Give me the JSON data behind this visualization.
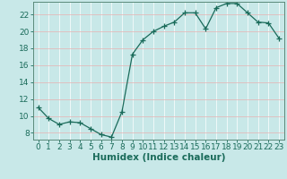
{
  "x": [
    0,
    1,
    2,
    3,
    4,
    5,
    6,
    7,
    8,
    9,
    10,
    11,
    12,
    13,
    14,
    15,
    16,
    17,
    18,
    19,
    20,
    21,
    22,
    23
  ],
  "y": [
    11,
    9.7,
    9.0,
    9.3,
    9.2,
    8.5,
    7.8,
    7.5,
    10.5,
    17.3,
    19.0,
    20.0,
    20.6,
    21.1,
    22.2,
    22.2,
    20.3,
    22.8,
    23.3,
    23.3,
    22.2,
    21.1,
    21.0,
    19.2
  ],
  "line_color": "#1a6b5a",
  "marker": "+",
  "marker_size": 4,
  "bg_color": "#c8e8e8",
  "grid_color": "#e8f8f8",
  "xlabel": "Humidex (Indice chaleur)",
  "xlim": [
    -0.5,
    23.5
  ],
  "ylim": [
    7.2,
    23.5
  ],
  "xticks": [
    0,
    1,
    2,
    3,
    4,
    5,
    6,
    7,
    8,
    9,
    10,
    11,
    12,
    13,
    14,
    15,
    16,
    17,
    18,
    19,
    20,
    21,
    22,
    23
  ],
  "yticks": [
    8,
    10,
    12,
    14,
    16,
    18,
    20,
    22
  ],
  "xlabel_fontsize": 7.5,
  "tick_fontsize": 6.5,
  "tick_color": "#1a6b5a",
  "axis_color": "#5a8a7a",
  "grid_line_color": "#f0fafa"
}
